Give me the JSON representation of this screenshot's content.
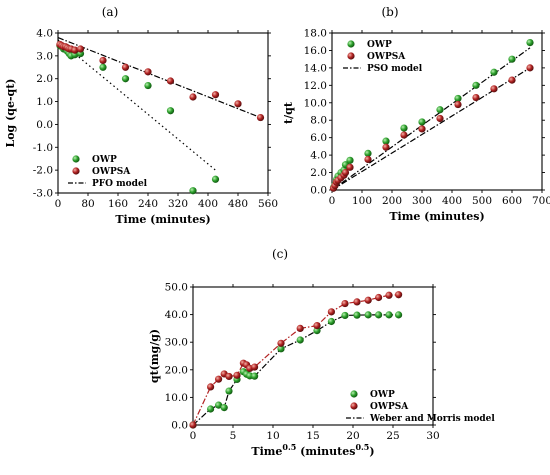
{
  "chart_data": [
    {
      "panel_label": "(a)",
      "type": "scatter",
      "xlabel": "Time (minutes)",
      "ylabel": "Log (qe-qt)",
      "xlim": [
        0,
        560
      ],
      "ylim": [
        -3.0,
        4.0
      ],
      "xticks": [
        "0",
        "80",
        "160",
        "240",
        "320",
        "400",
        "480",
        "560"
      ],
      "yticks": [
        "4.0",
        "3.0",
        "2.0",
        "1.0",
        "0.0",
        "-1.0",
        "-2.0",
        "-3.0"
      ],
      "legend_position": "bottom-left",
      "series": [
        {
          "name": "OWP",
          "marker": "circle",
          "color": "#2ca02c",
          "x": [
            5,
            10,
            15,
            20,
            25,
            30,
            35,
            45,
            60,
            120,
            180,
            240,
            300,
            360,
            420
          ],
          "y": [
            3.45,
            3.4,
            3.3,
            3.3,
            3.2,
            3.1,
            3.0,
            3.05,
            3.1,
            2.5,
            2.0,
            1.7,
            0.6,
            -2.9,
            -2.4
          ]
        },
        {
          "name": "OWPSA",
          "marker": "circle",
          "color": "#b22222",
          "x": [
            5,
            10,
            15,
            20,
            25,
            30,
            35,
            45,
            60,
            120,
            180,
            240,
            300,
            360,
            420,
            480,
            540
          ],
          "y": [
            3.5,
            3.45,
            3.4,
            3.4,
            3.35,
            3.3,
            3.3,
            3.25,
            3.3,
            2.8,
            2.5,
            2.3,
            1.9,
            1.2,
            1.3,
            0.9,
            0.3
          ]
        },
        {
          "name": "PFO model",
          "marker": "line",
          "color": "#000000",
          "x": [
            0,
            540
          ],
          "y": [
            3.8,
            0.3
          ]
        },
        {
          "name": "",
          "marker": "line-dotted",
          "color": "#000000",
          "x": [
            0,
            420
          ],
          "y": [
            3.7,
            -2.0
          ]
        }
      ]
    },
    {
      "panel_label": "(b)",
      "type": "scatter",
      "xlabel": "Time (minutes)",
      "ylabel": "t/qt",
      "xlim": [
        0,
        700
      ],
      "ylim": [
        0,
        18
      ],
      "xticks": [
        "0",
        "100",
        "200",
        "300",
        "400",
        "500",
        "600",
        "700"
      ],
      "yticks": [
        "0.0",
        "2.0",
        "4.0",
        "6.0",
        "8.0",
        "10.0",
        "12.0",
        "14.0",
        "16.0",
        "18.0"
      ],
      "legend_position": "top-left",
      "series": [
        {
          "name": "OWP",
          "marker": "circle",
          "color": "#2ca02c",
          "x": [
            5,
            10,
            15,
            20,
            30,
            40,
            45,
            60,
            120,
            180,
            240,
            300,
            360,
            420,
            480,
            540,
            600,
            660
          ],
          "y": [
            0.3,
            0.6,
            1.2,
            1.6,
            2.0,
            2.3,
            2.9,
            3.4,
            4.2,
            5.6,
            7.1,
            7.8,
            9.2,
            10.5,
            12.0,
            13.5,
            15.0,
            16.9
          ]
        },
        {
          "name": "OWPSA",
          "marker": "circle",
          "color": "#b22222",
          "x": [
            5,
            10,
            15,
            20,
            30,
            40,
            45,
            60,
            120,
            180,
            240,
            300,
            360,
            420,
            480,
            540,
            600,
            660
          ],
          "y": [
            0.2,
            0.5,
            0.9,
            1.1,
            1.4,
            1.7,
            2.0,
            2.6,
            3.5,
            4.9,
            6.3,
            7.0,
            8.2,
            9.8,
            10.6,
            11.6,
            12.6,
            14.0
          ]
        },
        {
          "name": "PSO model",
          "marker": "line",
          "color": "#000000",
          "x": [
            0,
            660
          ],
          "y": [
            0.0,
            16.3
          ]
        },
        {
          "name": "",
          "marker": "line",
          "color": "#000000",
          "x": [
            0,
            660
          ],
          "y": [
            0.0,
            14.0
          ]
        }
      ]
    },
    {
      "panel_label": "(c)",
      "type": "scatter",
      "xlabel": "Time0.5 (minutes0.5)",
      "xlabel_parts": [
        "Time",
        "0.5",
        " (minutes",
        "0.5",
        ")"
      ],
      "ylabel": "qt(mg/g)",
      "xlim": [
        0,
        30
      ],
      "ylim": [
        0,
        50
      ],
      "xticks": [
        "0",
        "5",
        "10",
        "15",
        "20",
        "25",
        "30"
      ],
      "yticks": [
        "0.0",
        "10.0",
        "20.0",
        "30.0",
        "40.0",
        "50.0"
      ],
      "legend_position": "bottom-right",
      "series": [
        {
          "name": "OWP",
          "marker": "circle",
          "color": "#2ca02c",
          "x": [
            0,
            2.2,
            3.2,
            3.9,
            4.5,
            5.5,
            6.3,
            6.7,
            7.1,
            7.7,
            11,
            13.4,
            15.5,
            17.3,
            19,
            20.5,
            21.9,
            23.2,
            24.5,
            25.7
          ],
          "y": [
            0,
            5.8,
            7.2,
            6.3,
            12.3,
            16.5,
            19.3,
            18.4,
            17.8,
            17.7,
            27.6,
            30.8,
            34.2,
            37.5,
            39.7,
            39.8,
            39.9,
            39.9,
            39.9,
            39.9
          ]
        },
        {
          "name": "OWPSA",
          "marker": "circle",
          "color": "#b22222",
          "x": [
            0,
            2.2,
            3.2,
            3.9,
            4.5,
            5.5,
            6.3,
            6.7,
            7.1,
            7.7,
            11,
            13.4,
            15.5,
            17.3,
            19,
            20.5,
            21.9,
            23.2,
            24.5,
            25.7
          ],
          "y": [
            0,
            13.8,
            16.6,
            18.5,
            17.6,
            18.0,
            22.4,
            21.8,
            20.5,
            21.0,
            29.6,
            35.0,
            36.0,
            41.0,
            44.0,
            44.6,
            45.2,
            46.2,
            47.0,
            47.2
          ]
        },
        {
          "name": "Weber and Morris model",
          "marker": "line",
          "color": "#b22222",
          "x": [
            0,
            2.2,
            3.2,
            3.9,
            4.5,
            5.5,
            6.3,
            6.7,
            7.1,
            7.7,
            11,
            13.4,
            15.5,
            17.3,
            19,
            20.5,
            21.9,
            23.2,
            24.5,
            25.7
          ],
          "y": [
            0,
            13.8,
            16.6,
            18.5,
            17.6,
            18.0,
            22.4,
            21.8,
            20.5,
            21.0,
            29.6,
            35.0,
            36.0,
            41.0,
            44.0,
            44.6,
            45.2,
            46.2,
            47.0,
            47.2
          ]
        },
        {
          "name": "",
          "marker": "line",
          "color": "#000000",
          "x": [
            0,
            2.2,
            3.2,
            3.9,
            4.5,
            5.5,
            6.3,
            6.7,
            7.1,
            7.7,
            11,
            13.4,
            15.5,
            17.3,
            19,
            20.5,
            21.9,
            23.2,
            24.5,
            25.7
          ],
          "y": [
            0,
            5.8,
            7.2,
            6.3,
            12.3,
            16.5,
            19.3,
            18.4,
            17.8,
            17.7,
            27.6,
            30.8,
            34.2,
            37.5,
            39.7,
            39.8,
            39.9,
            39.9,
            39.9,
            39.9
          ]
        }
      ]
    }
  ]
}
